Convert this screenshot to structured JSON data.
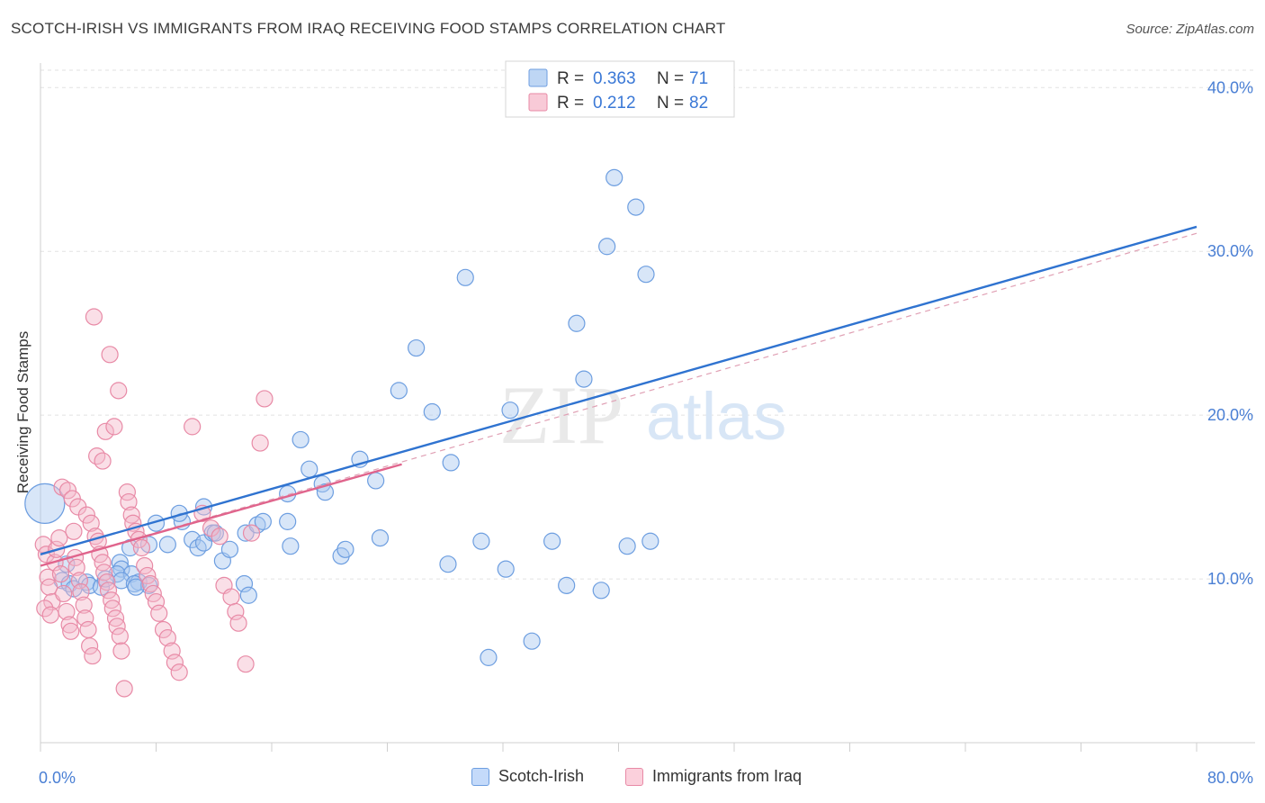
{
  "title": "SCOTCH-IRISH VS IMMIGRANTS FROM IRAQ RECEIVING FOOD STAMPS CORRELATION CHART",
  "source": "Source: ZipAtlas.com",
  "watermark": {
    "zip": "ZIP",
    "atlas": "atlas"
  },
  "legend": {
    "r_label": "R =",
    "n_label": "N =",
    "rows": [
      {
        "name": "Scotch-Irish",
        "r": "0.363",
        "n": "71",
        "color": "#a8c8f0",
        "stroke": "#6d9ee0"
      },
      {
        "name": "Immigrants from Iraq",
        "r": "0.212",
        "n": "82",
        "color": "#f5b8ca",
        "stroke": "#e88aa6"
      }
    ]
  },
  "chart_data": {
    "type": "scatter",
    "title": "SCOTCH-IRISH VS IMMIGRANTS FROM IRAQ RECEIVING FOOD STAMPS CORRELATION CHART",
    "xlabel": "",
    "ylabel": "Receiving Food Stamps",
    "xlim": [
      0,
      80
    ],
    "ylim": [
      0,
      41.5
    ],
    "x_tick_labels": [
      "0.0%",
      "80.0%"
    ],
    "y_ticks": [
      10,
      20,
      30,
      40
    ],
    "y_tick_labels": [
      "10.0%",
      "20.0%",
      "30.0%",
      "40.0%"
    ],
    "grid": true,
    "series": [
      {
        "name": "Scotch-Irish",
        "color": "#6d9ee0",
        "fill": "#a8c8f0",
        "trend": {
          "x": [
            0,
            80
          ],
          "y": [
            11.5,
            31.5
          ],
          "color": "#2f73d0"
        },
        "points": [
          [
            0.3,
            14.6
          ],
          [
            1.8,
            10.9
          ],
          [
            1.5,
            9.9
          ],
          [
            2.0,
            9.7
          ],
          [
            2.3,
            9.4
          ],
          [
            3.2,
            9.8
          ],
          [
            3.4,
            9.6
          ],
          [
            5.5,
            11.0
          ],
          [
            5.6,
            10.6
          ],
          [
            5.3,
            10.3
          ],
          [
            6.3,
            10.3
          ],
          [
            5.6,
            9.9
          ],
          [
            6.8,
            9.8
          ],
          [
            6.5,
            9.7
          ],
          [
            7.5,
            9.6
          ],
          [
            6.6,
            9.5
          ],
          [
            4.2,
            9.5
          ],
          [
            4.5,
            10.0
          ],
          [
            6.2,
            11.9
          ],
          [
            7.5,
            12.1
          ],
          [
            8.8,
            12.1
          ],
          [
            9.8,
            13.5
          ],
          [
            8.0,
            13.4
          ],
          [
            10.5,
            12.4
          ],
          [
            9.6,
            14.0
          ],
          [
            10.9,
            11.9
          ],
          [
            11.3,
            12.2
          ],
          [
            11.9,
            12.8
          ],
          [
            12.1,
            12.8
          ],
          [
            11.3,
            14.4
          ],
          [
            12.6,
            11.1
          ],
          [
            13.1,
            11.8
          ],
          [
            14.1,
            9.7
          ],
          [
            14.4,
            9.0
          ],
          [
            14.2,
            12.8
          ],
          [
            15.0,
            13.3
          ],
          [
            15.4,
            13.5
          ],
          [
            17.1,
            15.2
          ],
          [
            17.1,
            13.5
          ],
          [
            17.3,
            12.0
          ],
          [
            18.0,
            18.5
          ],
          [
            18.6,
            16.7
          ],
          [
            19.5,
            15.8
          ],
          [
            19.7,
            15.3
          ],
          [
            20.8,
            11.4
          ],
          [
            21.1,
            11.8
          ],
          [
            22.1,
            17.3
          ],
          [
            23.2,
            16.0
          ],
          [
            23.5,
            12.5
          ],
          [
            24.8,
            21.5
          ],
          [
            26.0,
            24.1
          ],
          [
            27.1,
            20.2
          ],
          [
            28.4,
            17.1
          ],
          [
            28.2,
            10.9
          ],
          [
            29.4,
            28.4
          ],
          [
            30.5,
            12.3
          ],
          [
            31.0,
            5.2
          ],
          [
            32.2,
            10.6
          ],
          [
            32.5,
            20.3
          ],
          [
            34.0,
            6.2
          ],
          [
            35.4,
            12.3
          ],
          [
            36.4,
            9.6
          ],
          [
            37.6,
            22.2
          ],
          [
            37.1,
            25.6
          ],
          [
            38.8,
            9.3
          ],
          [
            39.2,
            30.3
          ],
          [
            39.7,
            34.5
          ],
          [
            40.6,
            12.0
          ],
          [
            41.2,
            32.7
          ],
          [
            41.9,
            28.6
          ],
          [
            42.2,
            12.3
          ]
        ]
      },
      {
        "name": "Immigrants from Iraq",
        "color": "#e88aa6",
        "fill": "#f5b8ca",
        "trend": {
          "x": [
            0,
            25
          ],
          "y": [
            10.8,
            17.0
          ],
          "color": "#e0648c"
        },
        "trend_dashed": {
          "x": [
            0,
            80
          ],
          "y": [
            10.8,
            31.1
          ],
          "color": "#e0a0b4"
        },
        "points": [
          [
            0.2,
            12.1
          ],
          [
            0.4,
            11.5
          ],
          [
            0.5,
            10.1
          ],
          [
            0.6,
            9.5
          ],
          [
            0.8,
            8.6
          ],
          [
            0.3,
            8.2
          ],
          [
            0.7,
            7.8
          ],
          [
            1.0,
            11.0
          ],
          [
            1.1,
            11.8
          ],
          [
            1.3,
            12.5
          ],
          [
            1.4,
            10.3
          ],
          [
            1.6,
            9.1
          ],
          [
            1.8,
            8.0
          ],
          [
            2.0,
            7.2
          ],
          [
            2.1,
            6.8
          ],
          [
            2.3,
            12.9
          ],
          [
            2.4,
            11.3
          ],
          [
            2.5,
            10.7
          ],
          [
            2.7,
            9.9
          ],
          [
            2.8,
            9.2
          ],
          [
            3.0,
            8.4
          ],
          [
            3.1,
            7.6
          ],
          [
            3.3,
            6.9
          ],
          [
            3.4,
            5.9
          ],
          [
            3.6,
            5.3
          ],
          [
            1.5,
            15.6
          ],
          [
            1.9,
            15.4
          ],
          [
            2.2,
            14.9
          ],
          [
            2.6,
            14.4
          ],
          [
            3.2,
            13.9
          ],
          [
            3.5,
            13.4
          ],
          [
            3.8,
            12.6
          ],
          [
            4.0,
            12.3
          ],
          [
            4.1,
            11.5
          ],
          [
            4.3,
            11.0
          ],
          [
            4.4,
            10.4
          ],
          [
            4.6,
            9.8
          ],
          [
            4.7,
            9.3
          ],
          [
            4.9,
            8.7
          ],
          [
            5.0,
            8.2
          ],
          [
            5.2,
            7.6
          ],
          [
            5.3,
            7.1
          ],
          [
            5.5,
            6.5
          ],
          [
            5.6,
            5.6
          ],
          [
            5.8,
            3.3
          ],
          [
            3.9,
            17.5
          ],
          [
            4.3,
            17.2
          ],
          [
            4.5,
            19.0
          ],
          [
            5.1,
            19.3
          ],
          [
            5.4,
            21.5
          ],
          [
            4.8,
            23.7
          ],
          [
            3.7,
            26.0
          ],
          [
            6.0,
            15.3
          ],
          [
            6.1,
            14.7
          ],
          [
            6.3,
            13.9
          ],
          [
            6.4,
            13.4
          ],
          [
            6.6,
            12.9
          ],
          [
            6.8,
            12.4
          ],
          [
            7.0,
            11.9
          ],
          [
            7.2,
            10.8
          ],
          [
            7.4,
            10.2
          ],
          [
            7.6,
            9.7
          ],
          [
            7.8,
            9.1
          ],
          [
            8.0,
            8.6
          ],
          [
            8.2,
            7.9
          ],
          [
            8.5,
            6.9
          ],
          [
            8.8,
            6.4
          ],
          [
            9.1,
            5.6
          ],
          [
            9.3,
            4.9
          ],
          [
            9.6,
            4.3
          ],
          [
            10.5,
            19.3
          ],
          [
            11.2,
            14.0
          ],
          [
            11.8,
            13.1
          ],
          [
            12.4,
            12.6
          ],
          [
            12.7,
            9.6
          ],
          [
            13.2,
            8.9
          ],
          [
            13.5,
            8.0
          ],
          [
            13.7,
            7.3
          ],
          [
            14.2,
            4.8
          ],
          [
            14.6,
            12.8
          ],
          [
            15.2,
            18.3
          ],
          [
            15.5,
            21.0
          ]
        ]
      }
    ]
  }
}
